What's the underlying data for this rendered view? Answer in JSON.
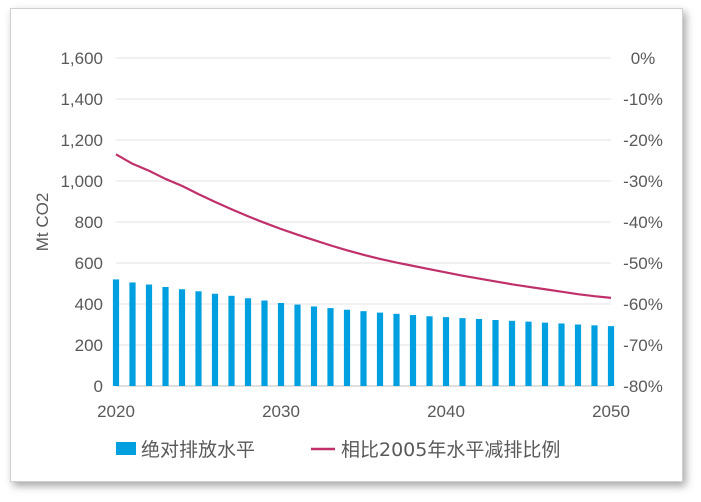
{
  "chart_data": {
    "type": "bar",
    "ylabel": "Mt CO2",
    "ylim": [
      0,
      1600
    ],
    "y2lim": [
      -80,
      0
    ],
    "y_ticks": [
      "0",
      "200",
      "400",
      "600",
      "800",
      "1,000",
      "1,200",
      "1,400",
      "1,600"
    ],
    "y2_ticks": [
      "-80%",
      "-70%",
      "-60%",
      "-50%",
      "-40%",
      "-30%",
      "-20%",
      "-10%",
      "0%"
    ],
    "x_ticks": [
      "2020",
      "2030",
      "2040",
      "2050"
    ],
    "x": [
      2020,
      2021,
      2022,
      2023,
      2024,
      2025,
      2026,
      2027,
      2028,
      2029,
      2030,
      2031,
      2032,
      2033,
      2034,
      2035,
      2036,
      2037,
      2038,
      2039,
      2040,
      2041,
      2042,
      2043,
      2044,
      2045,
      2046,
      2047,
      2048,
      2049,
      2050
    ],
    "grid": true,
    "legend_position": "bottom",
    "series": [
      {
        "name": "绝对排放水平",
        "type": "bar",
        "axis": "left",
        "color": "#00a0e0",
        "values": [
          520,
          505,
          495,
          483,
          472,
          462,
          450,
          440,
          428,
          417,
          405,
          397,
          388,
          380,
          372,
          365,
          358,
          352,
          346,
          340,
          336,
          331,
          327,
          322,
          318,
          314,
          309,
          305,
          300,
          296,
          292
        ]
      },
      {
        "name": "相比2005年水平减排比例",
        "type": "line",
        "axis": "right",
        "color": "#c0306a",
        "values": [
          -23.5,
          -25.8,
          -27.5,
          -29.5,
          -31.2,
          -33.2,
          -35.1,
          -36.9,
          -38.6,
          -40.2,
          -41.7,
          -43.1,
          -44.4,
          -45.7,
          -46.9,
          -48.0,
          -49.0,
          -49.9,
          -50.7,
          -51.5,
          -52.3,
          -53.1,
          -53.8,
          -54.5,
          -55.2,
          -55.8,
          -56.4,
          -57.0,
          -57.6,
          -58.1,
          -58.5
        ]
      }
    ]
  }
}
